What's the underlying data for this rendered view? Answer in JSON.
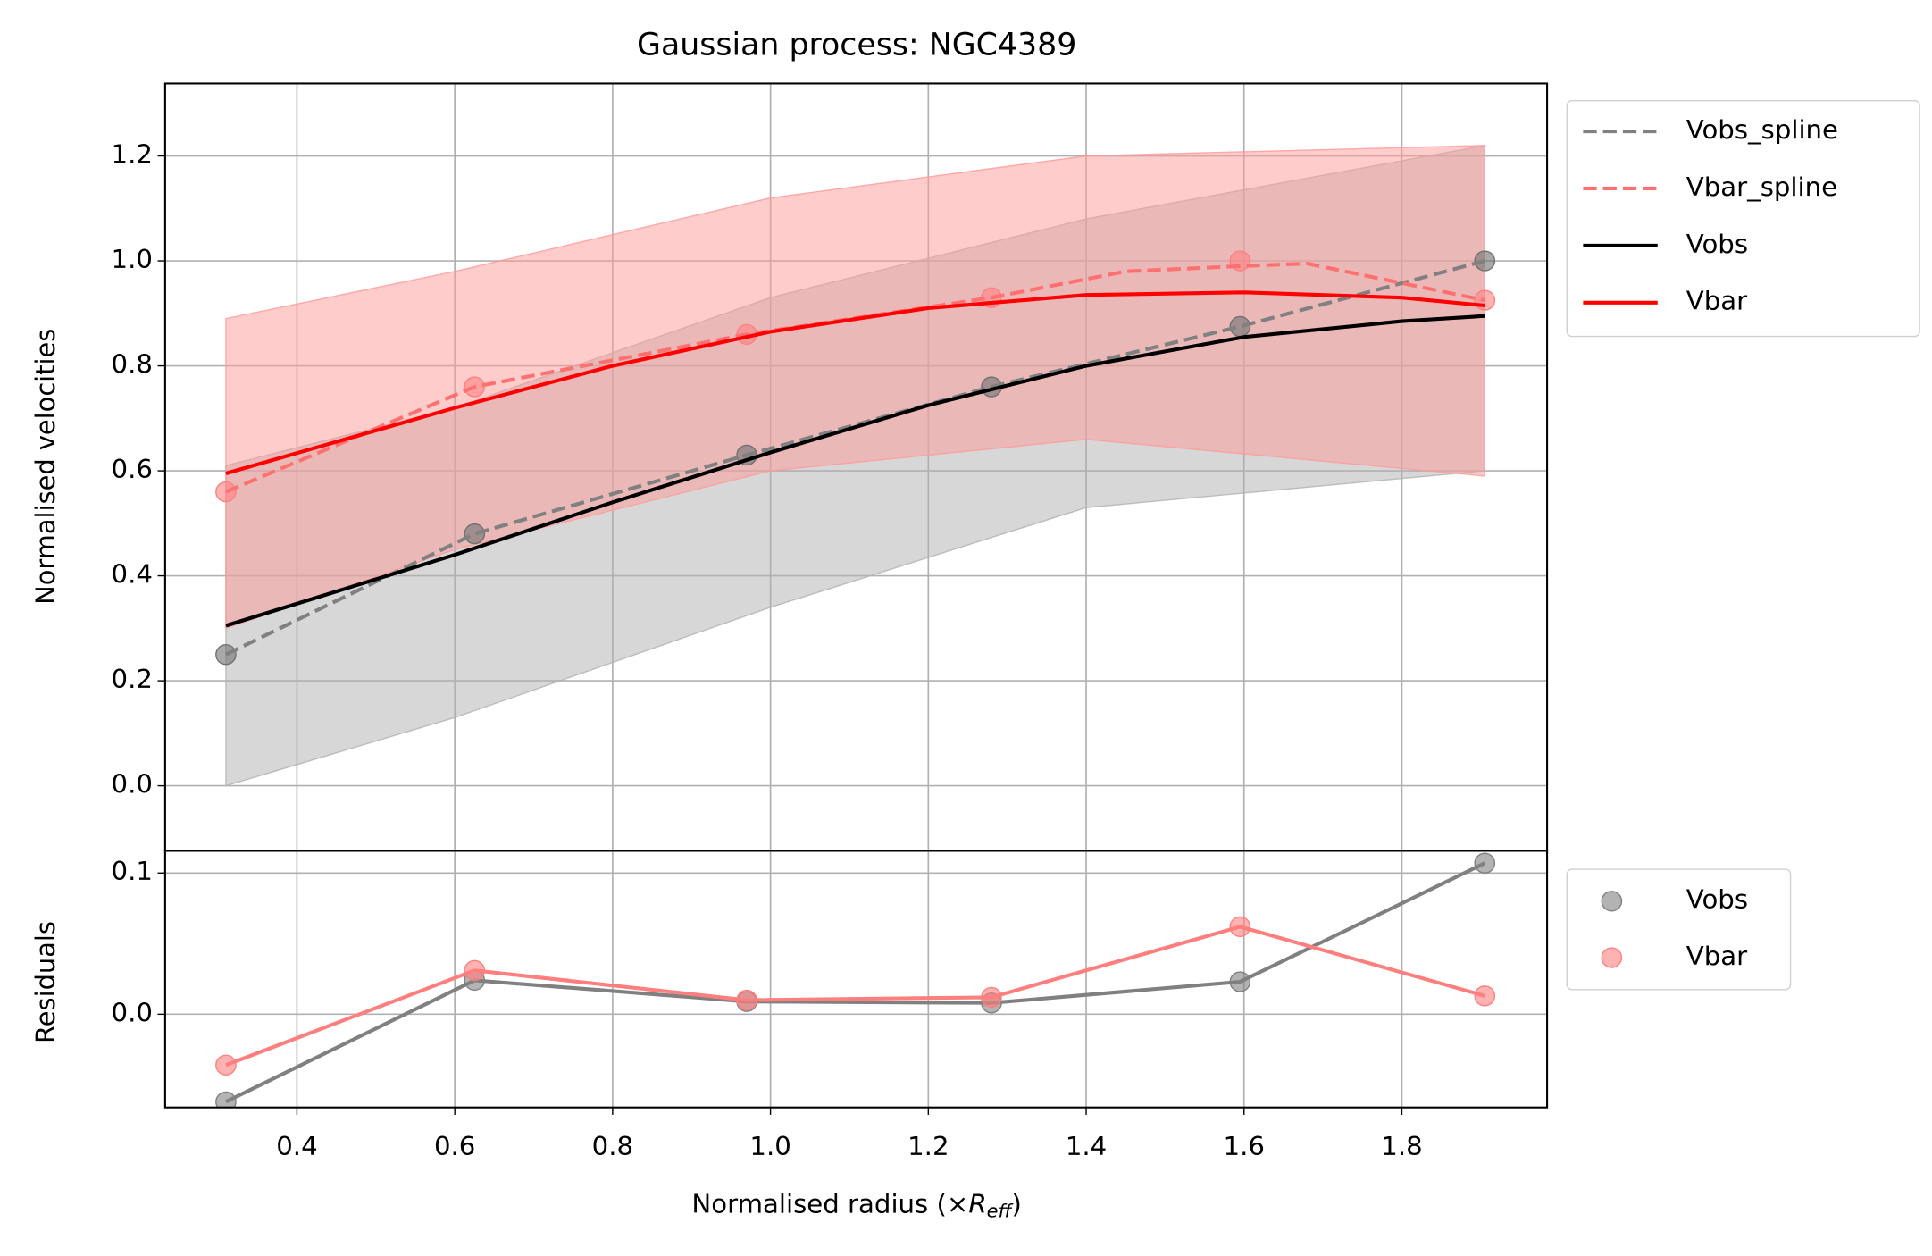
{
  "chart_data": [
    {
      "type": "line",
      "title": "Gaussian process: NGC4389",
      "ylabel": "Normalised velocities",
      "xlim": [
        0.233,
        1.984
      ],
      "ylim": [
        -0.124,
        1.338
      ],
      "yticks": [
        {
          "value": 0,
          "label": "0.0"
        },
        0.2,
        0.4,
        0.6,
        0.8,
        {
          "value": 1,
          "label": "1.0"
        },
        1.2
      ],
      "grid": true,
      "legend": "outside upper right",
      "bands": [
        {
          "color": "#b0b0b0",
          "x": [
            0.31,
            0.6,
            1.0,
            1.4,
            1.905
          ],
          "upper": [
            0.61,
            0.72,
            0.93,
            1.08,
            1.22
          ],
          "lower": [
            0.0,
            0.13,
            0.34,
            0.53,
            0.6
          ]
        },
        {
          "color": "#ff9999",
          "x": [
            0.31,
            0.6,
            1.0,
            1.4,
            1.905
          ],
          "upper": [
            0.89,
            0.98,
            1.12,
            1.2,
            1.22
          ],
          "lower": [
            0.3,
            0.45,
            0.6,
            0.66,
            0.59
          ]
        }
      ],
      "series": [
        {
          "name": "Vobs_spline",
          "color": "#808080",
          "dashed": true,
          "x": [
            0.31,
            0.625,
            0.97,
            1.28,
            1.595,
            1.905
          ],
          "values": [
            0.25,
            0.48,
            0.63,
            0.76,
            0.875,
            1.0
          ]
        },
        {
          "name": "Vbar_spline",
          "color": "#ff7070",
          "dashed": true,
          "x": [
            0.31,
            0.625,
            0.97,
            1.28,
            1.45,
            1.595,
            1.68,
            1.905
          ],
          "values": [
            0.56,
            0.76,
            0.86,
            0.93,
            0.98,
            0.99,
            0.995,
            0.925
          ]
        },
        {
          "name": "Vobs",
          "color": "#000000",
          "dashed": false,
          "x": [
            0.31,
            0.6,
            0.8,
            1.0,
            1.2,
            1.4,
            1.6,
            1.8,
            1.905
          ],
          "values": [
            0.305,
            0.44,
            0.54,
            0.635,
            0.725,
            0.8,
            0.855,
            0.885,
            0.895
          ]
        },
        {
          "name": "Vbar",
          "color": "#ff0000",
          "dashed": false,
          "x": [
            0.31,
            0.6,
            0.8,
            1.0,
            1.2,
            1.4,
            1.6,
            1.8,
            1.905
          ],
          "values": [
            0.595,
            0.72,
            0.8,
            0.865,
            0.91,
            0.935,
            0.94,
            0.93,
            0.915
          ]
        }
      ],
      "markers": [
        {
          "color": "#707070",
          "x": [
            0.31,
            0.625,
            0.97,
            1.28,
            1.595,
            1.905
          ],
          "values": [
            0.25,
            0.48,
            0.63,
            0.76,
            0.875,
            1.0
          ]
        },
        {
          "color": "#ff8080",
          "x": [
            0.31,
            0.625,
            0.97,
            1.28,
            1.595,
            1.905
          ],
          "values": [
            0.56,
            0.76,
            0.86,
            0.93,
            1.0,
            0.925
          ]
        }
      ]
    },
    {
      "type": "scatter",
      "ylabel": "Residuals",
      "xlabel": [
        "Normalised radius (×",
        "R",
        "eff",
        ")"
      ],
      "xlim": [
        0.233,
        1.984
      ],
      "ylim": [
        -0.066,
        0.1157
      ],
      "xticks": [
        0.4,
        0.6,
        0.8,
        {
          "value": 1,
          "label": "1.0"
        },
        1.2,
        1.4,
        1.6,
        1.8
      ],
      "yticks": [
        {
          "value": 0,
          "label": "0.0"
        },
        0.1
      ],
      "grid": true,
      "legend": "outside upper right",
      "series": [
        {
          "name": "Vobs",
          "color": "#808080",
          "x": [
            0.31,
            0.625,
            0.97,
            1.28,
            1.595,
            1.905
          ],
          "values": [
            -0.062,
            0.024,
            0.009,
            0.008,
            0.023,
            0.107
          ]
        },
        {
          "name": "Vbar",
          "color": "#ff7f7f",
          "x": [
            0.31,
            0.625,
            0.97,
            1.28,
            1.595,
            1.905
          ],
          "values": [
            -0.036,
            0.031,
            0.01,
            0.012,
            0.062,
            0.013
          ]
        }
      ]
    }
  ]
}
